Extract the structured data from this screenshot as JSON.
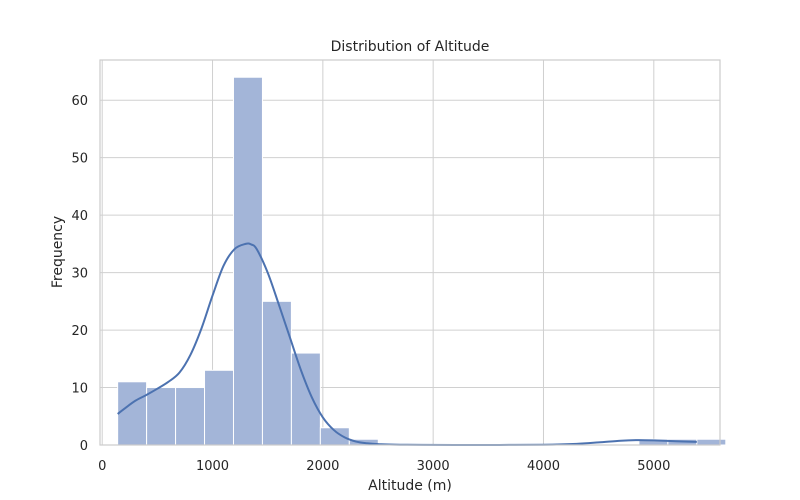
{
  "chart_data": {
    "type": "histogram",
    "title": "Distribution of Altitude",
    "xlabel": "Altitude (m)",
    "ylabel": "Frequency",
    "xlim": [
      -20,
      5600
    ],
    "ylim": [
      0,
      67
    ],
    "xticks": [
      0,
      1000,
      2000,
      3000,
      4000,
      5000
    ],
    "yticks": [
      0,
      10,
      20,
      30,
      40,
      50,
      60
    ],
    "grid": true,
    "colors": {
      "bar": "#a3b5d8",
      "bar_edge": "#ffffff",
      "kde": "#4c72b0",
      "grid": "#d0d0d0",
      "spine": "#cccccc"
    },
    "bin_start": 140,
    "bin_width": 262.5,
    "counts": [
      11,
      10,
      10,
      13,
      64,
      25,
      16,
      3,
      1,
      0,
      0,
      0,
      0,
      0,
      0,
      0,
      0,
      0,
      1,
      1,
      1
    ],
    "kde_line": {
      "x": [
        140,
        200,
        300,
        400,
        500,
        600,
        700,
        800,
        900,
        1000,
        1100,
        1200,
        1300,
        1350,
        1400,
        1500,
        1600,
        1700,
        1800,
        1900,
        2000,
        2100,
        2200,
        2300,
        2400,
        2500,
        2700,
        2900,
        3200,
        3600,
        4000,
        4300,
        4500,
        4700,
        4850,
        5000,
        5200,
        5390
      ],
      "y": [
        5.4,
        6.3,
        7.7,
        8.7,
        9.8,
        11.0,
        12.6,
        15.7,
        20.3,
        26.0,
        31.2,
        34.1,
        35.0,
        34.9,
        34.1,
        30.0,
        24.5,
        18.8,
        13.1,
        8.3,
        4.8,
        2.6,
        1.3,
        0.6,
        0.3,
        0.15,
        0.05,
        0.02,
        0.01,
        0.01,
        0.05,
        0.2,
        0.45,
        0.75,
        0.85,
        0.8,
        0.65,
        0.55
      ]
    }
  }
}
